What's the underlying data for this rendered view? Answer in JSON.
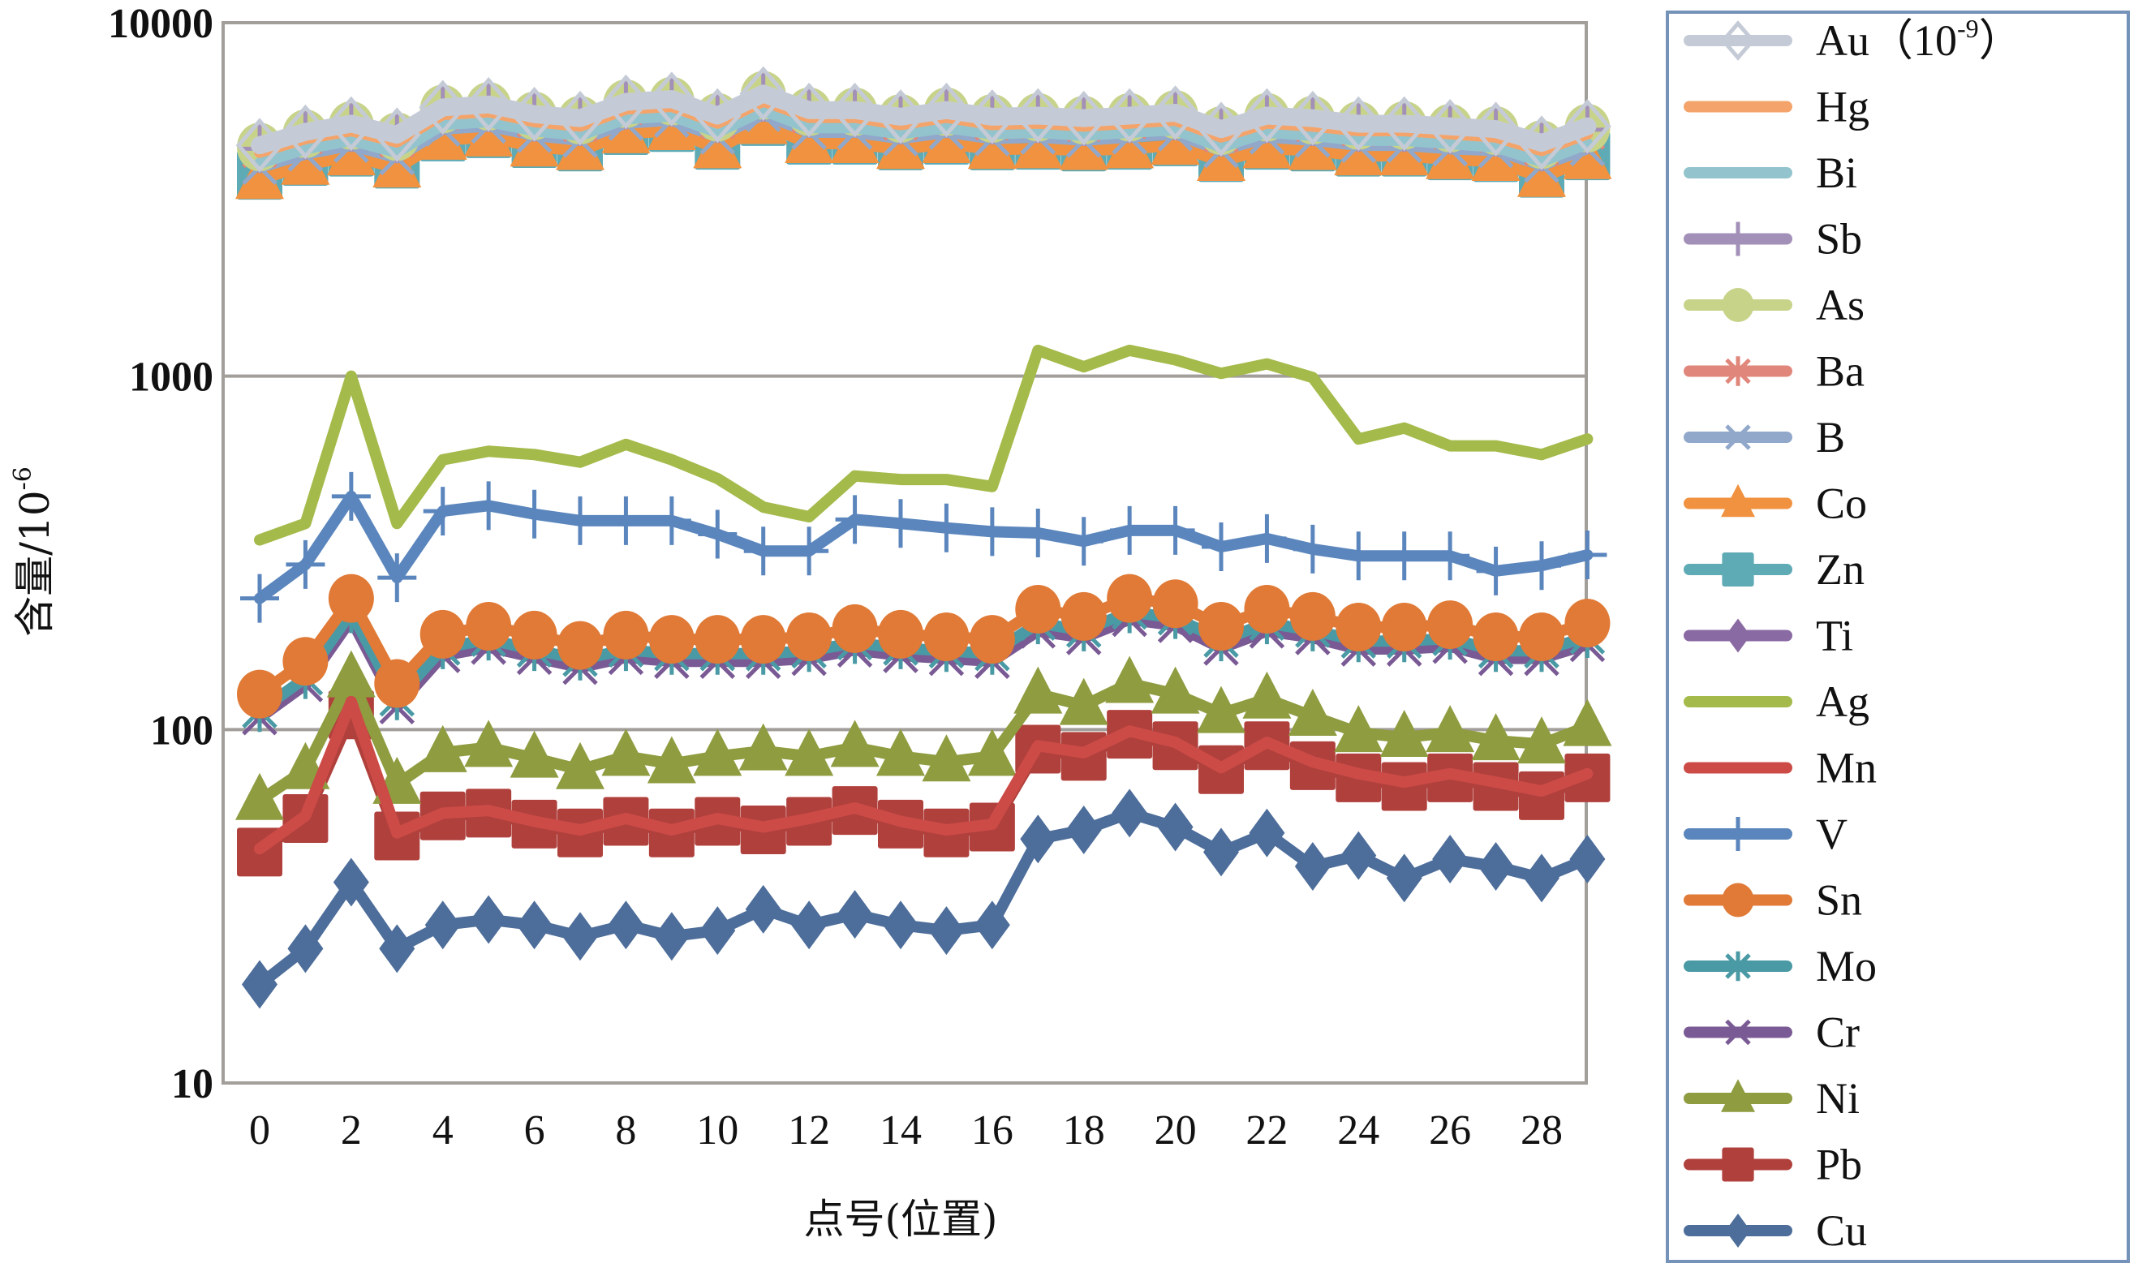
{
  "chart_data": {
    "type": "line",
    "title": "",
    "xlabel": "点号(位置)",
    "ylabel": "含量/10",
    "ylabel_superscript": "-6",
    "yscale": "log",
    "ylim": [
      10,
      10000
    ],
    "xlim": [
      -0.3,
      29
    ],
    "yticks": [
      10,
      100,
      1000,
      10000
    ],
    "ytick_labels": [
      "10",
      "100",
      "1000",
      "10000"
    ],
    "xticks": [
      0,
      2,
      4,
      6,
      8,
      10,
      12,
      14,
      16,
      18,
      20,
      22,
      24,
      26,
      28
    ],
    "xtick_labels": [
      "0",
      "2",
      "4",
      "6",
      "8",
      "10",
      "12",
      "14",
      "16",
      "18",
      "20",
      "22",
      "24",
      "26",
      "28"
    ],
    "grid": "horizontal major gridlines",
    "legend_position": "right",
    "x": [
      0,
      1,
      2,
      3,
      4,
      5,
      6,
      7,
      8,
      9,
      10,
      11,
      12,
      13,
      14,
      15,
      16,
      17,
      18,
      19,
      20,
      21,
      22,
      23,
      24,
      25,
      26,
      27,
      28,
      29
    ],
    "series": [
      {
        "name": "Au",
        "label_suffix": "（10",
        "label_sup": "-9",
        "label_end": "）",
        "color": "#c5cbd6",
        "marker": "diamond-open",
        "values": [
          4500,
          4910,
          5180,
          4820,
          5760,
          5870,
          5510,
          5370,
          5970,
          6080,
          5460,
          6300,
          5660,
          5660,
          5420,
          5660,
          5420,
          5460,
          5370,
          5460,
          5560,
          5000,
          5460,
          5370,
          5180,
          5180,
          5090,
          5000,
          4570,
          5090
        ]
      },
      {
        "name": "Hg",
        "color": "#f4a46a",
        "marker": "none",
        "values": [
          4300,
          4700,
          4950,
          4600,
          5500,
          5600,
          5250,
          5100,
          5700,
          5800,
          5200,
          6000,
          5400,
          5400,
          5150,
          5400,
          5150,
          5200,
          5100,
          5200,
          5300,
          4750,
          5200,
          5100,
          4950,
          4950,
          4850,
          4750,
          4350,
          4850
        ]
      },
      {
        "name": "Bi",
        "color": "#93c4cd",
        "marker": "none",
        "values": [
          4000,
          4400,
          4650,
          4300,
          5150,
          5250,
          4950,
          4800,
          5350,
          5450,
          4900,
          5650,
          5050,
          5050,
          4850,
          5050,
          4850,
          4900,
          4800,
          4900,
          4980,
          4450,
          4900,
          4800,
          4650,
          4650,
          4550,
          4450,
          4050,
          4550
        ]
      },
      {
        "name": "Sb",
        "color": "#a390b8",
        "marker": "vbar",
        "values": [
          4400,
          4800,
          5050,
          4700,
          5650,
          5750,
          5400,
          5250,
          5850,
          5950,
          5350,
          6150,
          5550,
          5550,
          5300,
          5550,
          5300,
          5350,
          5250,
          5350,
          5450,
          4900,
          5350,
          5250,
          5050,
          5050,
          4980,
          4900,
          4450,
          4980
        ]
      },
      {
        "name": "As",
        "color": "#c8d38a",
        "marker": "circle",
        "values": [
          4450,
          4850,
          5120,
          4760,
          5700,
          5800,
          5450,
          5300,
          5900,
          6000,
          5400,
          6230,
          5600,
          5600,
          5360,
          5600,
          5360,
          5400,
          5300,
          5400,
          5500,
          4950,
          5400,
          5300,
          5120,
          5120,
          5030,
          4950,
          4520,
          5030
        ]
      },
      {
        "name": "Ba",
        "color": "#e0867a",
        "marker": "asterisk",
        "values": [
          4350,
          4750,
          5000,
          4650,
          5550,
          5650,
          5300,
          5150,
          5750,
          5850,
          5250,
          6050,
          5450,
          5450,
          5200,
          5450,
          5200,
          5250,
          5150,
          5250,
          5350,
          4800,
          5250,
          5150,
          5000,
          5000,
          4900,
          4800,
          4400,
          4900
        ]
      },
      {
        "name": "B",
        "color": "#91a8cb",
        "marker": "x",
        "values": [
          3900,
          4250,
          4500,
          4150,
          5000,
          5100,
          4800,
          4650,
          5200,
          5300,
          4750,
          5500,
          4900,
          4900,
          4700,
          4900,
          4700,
          4750,
          4650,
          4750,
          4850,
          4350,
          4750,
          4650,
          4500,
          4500,
          4400,
          4350,
          3950,
          4400
        ]
      },
      {
        "name": "Co",
        "color": "#f0923f",
        "marker": "triangle",
        "values": [
          3600,
          3950,
          4200,
          3880,
          4650,
          4750,
          4450,
          4350,
          4850,
          4950,
          4400,
          5150,
          4550,
          4550,
          4380,
          4550,
          4380,
          4400,
          4350,
          4400,
          4500,
          4050,
          4400,
          4350,
          4200,
          4200,
          4100,
          4050,
          3650,
          4100
        ]
      },
      {
        "name": "Zn",
        "color": "#5eaab5",
        "marker": "square",
        "values": [
          3700,
          4050,
          4300,
          3980,
          4750,
          4850,
          4550,
          4450,
          4950,
          5050,
          4500,
          5250,
          4650,
          4650,
          4480,
          4650,
          4480,
          4500,
          4450,
          4500,
          4600,
          4150,
          4500,
          4450,
          4300,
          4300,
          4200,
          4150,
          3750,
          4200
        ]
      },
      {
        "name": "Ti",
        "color": "#8a6aa2",
        "marker": "diamond",
        "values": [
          3800,
          4150,
          4400,
          4080,
          4850,
          4950,
          4650,
          4550,
          5050,
          5150,
          4600,
          5350,
          4750,
          4750,
          4580,
          4750,
          4580,
          4600,
          4550,
          4600,
          4700,
          4250,
          4600,
          4550,
          4400,
          4400,
          4300,
          4250,
          3850,
          4300
        ]
      },
      {
        "name": "Ag",
        "color": "#a4ba4a",
        "marker": "none",
        "values": [
          344,
          383,
          1000,
          383,
          580,
          613,
          600,
          571,
          641,
          580,
          513,
          426,
          400,
          522,
          510,
          510,
          487,
          1183,
          1063,
          1183,
          1112,
          1018,
          1083,
          991,
          664,
          713,
          635,
          635,
          600,
          664
        ]
      },
      {
        "name": "Mn",
        "color": "#cc4b47",
        "marker": "none",
        "values": [
          46,
          57,
          120,
          51,
          58,
          59,
          55,
          52,
          56,
          52,
          56,
          53,
          56,
          60,
          55,
          52,
          54,
          90,
          86,
          99,
          92,
          78,
          92,
          81,
          75,
          71,
          75,
          71,
          67,
          75
        ]
      },
      {
        "name": "V",
        "color": "#5b86bd",
        "marker": "vbar",
        "values": [
          235,
          293,
          457,
          269,
          415,
          430,
          407,
          390,
          390,
          390,
          357,
          320,
          320,
          393,
          383,
          372,
          363,
          360,
          341,
          366,
          366,
          329,
          347,
          324,
          310,
          310,
          310,
          281,
          291,
          312
        ]
      },
      {
        "name": "Sn",
        "color": "#e07a36",
        "marker": "circle",
        "values": [
          126,
          156,
          235,
          135,
          186,
          196,
          185,
          173,
          185,
          180,
          180,
          180,
          183,
          193,
          186,
          183,
          180,
          219,
          209,
          235,
          227,
          196,
          219,
          209,
          195,
          195,
          198,
          183,
          183,
          200
        ]
      },
      {
        "name": "Mo",
        "color": "#4a9aa5",
        "marker": "asterisk",
        "values": [
          113,
          140,
          215,
          122,
          170,
          180,
          168,
          158,
          168,
          164,
          164,
          164,
          167,
          176,
          170,
          167,
          164,
          200,
          191,
          215,
          207,
          179,
          200,
          191,
          178,
          178,
          181,
          167,
          167,
          183
        ]
      },
      {
        "name": "Cr",
        "color": "#7a5a94",
        "marker": "x",
        "values": [
          108,
          134,
          205,
          116,
          162,
          171,
          160,
          150,
          160,
          156,
          156,
          156,
          159,
          168,
          162,
          159,
          156,
          190,
          182,
          205,
          197,
          170,
          190,
          182,
          169,
          169,
          172,
          159,
          159,
          174
        ]
      },
      {
        "name": "Ni",
        "color": "#8f9c3f",
        "marker": "triangle",
        "values": [
          63,
          77,
          140,
          70,
          86,
          89,
          83,
          77,
          84,
          80,
          84,
          87,
          84,
          89,
          84,
          81,
          84,
          126,
          117,
          135,
          126,
          111,
          122,
          109,
          98,
          95,
          98,
          93,
          91,
          102
        ]
      },
      {
        "name": "Pb",
        "color": "#b0403c",
        "marker": "square",
        "values": [
          45,
          56,
          110,
          50,
          57,
          58,
          54,
          51,
          55,
          51,
          55,
          52,
          55,
          59,
          54,
          51,
          53,
          88,
          84,
          97,
          90,
          77,
          90,
          79,
          73,
          69,
          73,
          69,
          65,
          73
        ]
      },
      {
        "name": "Cu",
        "color": "#4d6d9a",
        "marker": "diamond",
        "values": [
          19,
          24,
          37,
          24,
          28,
          29,
          28,
          26,
          28,
          26,
          27,
          31,
          28,
          30,
          28,
          27,
          28,
          49,
          52,
          58,
          53,
          45,
          51,
          41,
          44,
          38,
          43,
          41,
          38,
          43
        ]
      }
    ]
  }
}
